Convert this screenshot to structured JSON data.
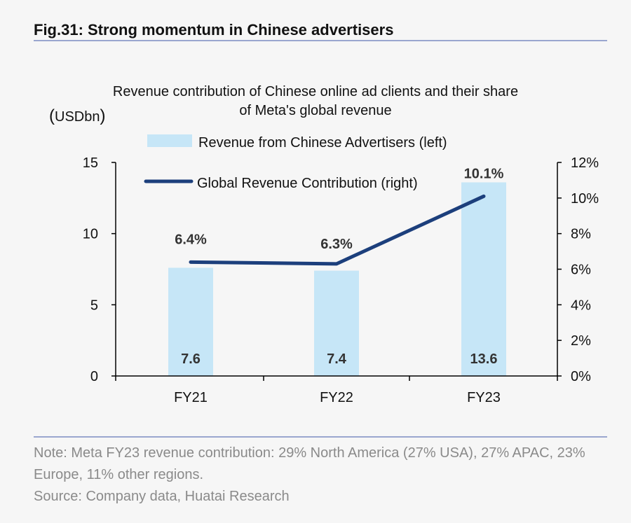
{
  "figure": {
    "title": "Fig.31: Strong momentum in Chinese advertisers",
    "note": "Note: Meta FY23 revenue contribution: 29% North America (27% USA), 27% APAC, 23% Europe, 11% other regions.",
    "source": "Source: Company data, Huatai Research"
  },
  "chart_data": {
    "type": "bar",
    "title": "Revenue contribution of Chinese online ad clients and their share of Meta's global revenue",
    "unit_label": "USDbn",
    "categories": [
      "FY21",
      "FY22",
      "FY23"
    ],
    "series": [
      {
        "name": "Revenue from Chinese Advertisers (left)",
        "type": "bar",
        "axis": "left",
        "values": [
          7.6,
          7.4,
          13.6
        ],
        "labels": [
          "7.6",
          "7.4",
          "13.6"
        ],
        "color": "#c6e6f7"
      },
      {
        "name": "Global Revenue Contribution (right)",
        "type": "line",
        "axis": "right",
        "values": [
          6.4,
          6.3,
          10.1
        ],
        "labels": [
          "6.4%",
          "6.3%",
          "10.1%"
        ],
        "color": "#1c3f7c"
      }
    ],
    "left_axis": {
      "min": 0,
      "max": 15,
      "ticks": [
        0,
        5,
        10,
        15
      ],
      "tick_labels": [
        "0",
        "5",
        "10",
        "15"
      ]
    },
    "right_axis": {
      "min": 0,
      "max": 12,
      "ticks": [
        0,
        2,
        4,
        6,
        8,
        10,
        12
      ],
      "tick_labels": [
        "0%",
        "2%",
        "4%",
        "6%",
        "8%",
        "10%",
        "12%"
      ]
    },
    "grid": false,
    "legend_position": "top-left"
  }
}
